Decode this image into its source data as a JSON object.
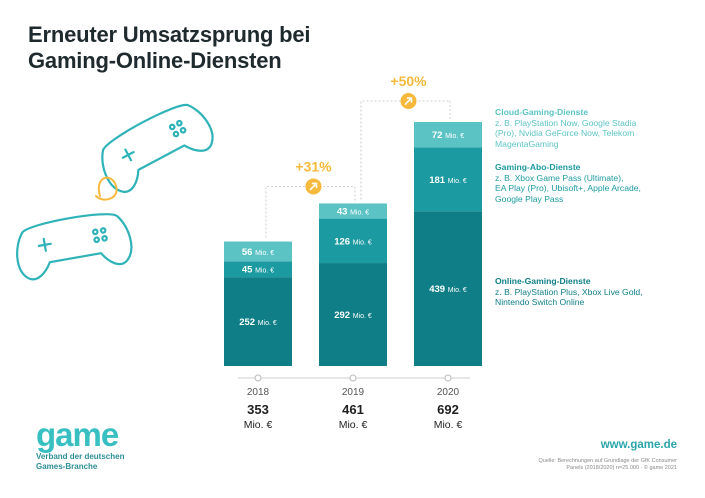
{
  "title_line1": "Erneuter Umsatzsprung bei",
  "title_line2": "Gaming-Online-Diensten",
  "colors": {
    "cloud": "#5cc3c5",
    "abo": "#1c9aa1",
    "online": "#0f7e86",
    "growth": "#f6b93b"
  },
  "legend": {
    "cloud": {
      "title": "Cloud-Gaming-Dienste",
      "lines": [
        "z. B. PlayStation Now, Google Stadia",
        "(Pro), Nvidia GeForce Now, Telekom",
        "MagentaGaming"
      ]
    },
    "abo": {
      "title": "Gaming-Abo-Dienste",
      "lines": [
        "z. B. Xbox Game Pass (Ultimate),",
        "EA Play (Pro), Ubisoft+, Apple Arcade,",
        "Google Play Pass"
      ]
    },
    "online": {
      "title": "Online-Gaming-Dienste",
      "lines": [
        "z. B. PlayStation Plus, Xbox Live Gold,",
        "Nintendo Switch Online"
      ]
    }
  },
  "chart_data": {
    "type": "bar",
    "stacked": true,
    "categories": [
      "2018",
      "2019",
      "2020"
    ],
    "unit": "Mio. €",
    "series": [
      {
        "name": "Online-Gaming-Dienste",
        "values": [
          252,
          292,
          439
        ]
      },
      {
        "name": "Gaming-Abo-Dienste",
        "values": [
          45,
          126,
          181
        ]
      },
      {
        "name": "Cloud-Gaming-Dienste",
        "values": [
          56,
          43,
          72
        ]
      }
    ],
    "totals": [
      "353",
      "461",
      "692"
    ],
    "growth": [
      "+31%",
      "+50%"
    ],
    "ylim": [
      0,
      692
    ],
    "legend_position": "right"
  },
  "brand": {
    "logo": "game",
    "line1": "Verband der deutschen",
    "line2": "Games-Branche"
  },
  "url": "www.game.de",
  "source_line1": "Quelle: Berechnungen auf Grundlage der GfK Consumer",
  "source_line2": "Panels (2018/2020) n=25.000 · © game 2021"
}
